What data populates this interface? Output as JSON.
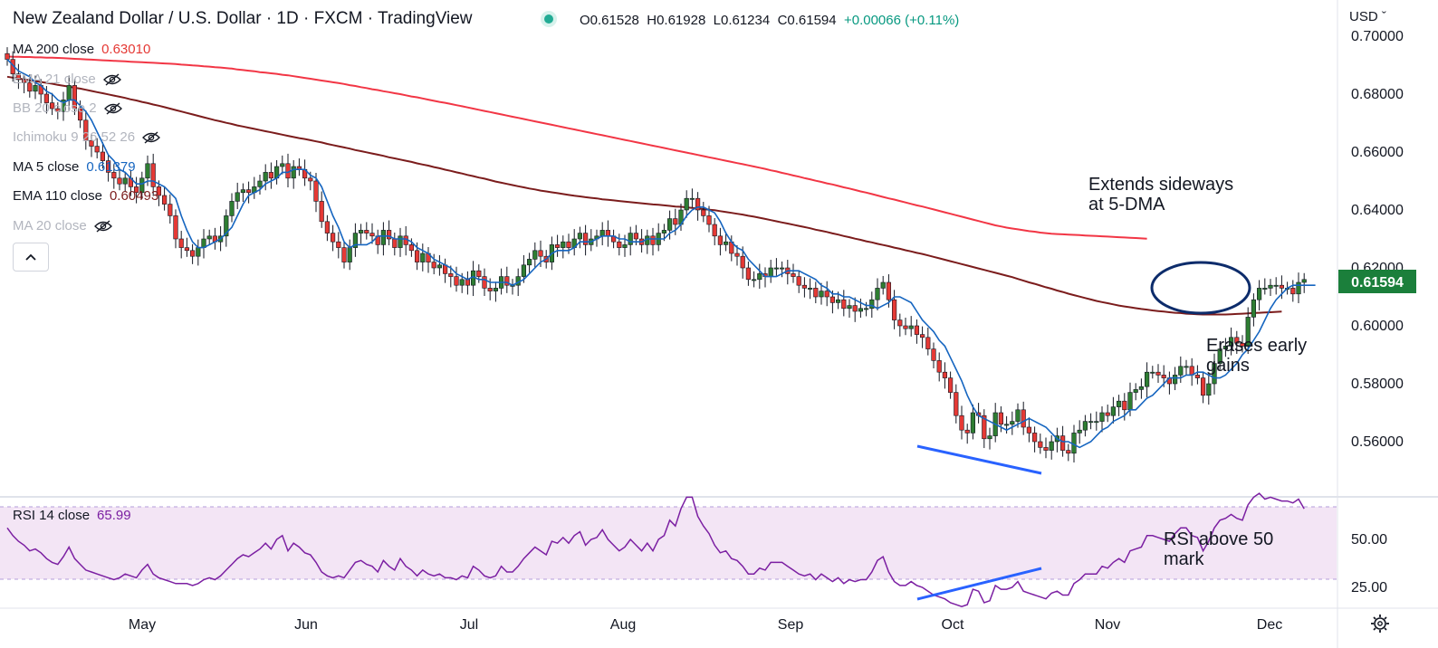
{
  "header": {
    "title": "New Zealand Dollar / U.S. Dollar · 1D · FXCM · TradingView",
    "open": "O0.61528",
    "high": "H0.61928",
    "low": "L0.61234",
    "close": "C0.61594",
    "change": "+0.00066 (+0.11%)"
  },
  "currency_selector": "USD",
  "indicators": [
    {
      "name": "MA 200 close",
      "value": "0.63010",
      "color": "#e53935",
      "visible": true
    },
    {
      "name": "EMA 21 close",
      "value": "",
      "color": "#b2b5be",
      "visible": false
    },
    {
      "name": "BB 20 close 2",
      "value": "",
      "color": "#b2b5be",
      "visible": false
    },
    {
      "name": "Ichimoku 9 26 52 26",
      "value": "",
      "color": "#b2b5be",
      "visible": false
    },
    {
      "name": "MA 5 close",
      "value": "0.61379",
      "color": "#1565c0",
      "visible": true
    },
    {
      "name": "EMA 110 close",
      "value": "0.60493",
      "color": "#7b1c1c",
      "visible": true
    },
    {
      "name": "MA 20 close",
      "value": "",
      "color": "#b2b5be",
      "visible": false
    }
  ],
  "rsi_legend": {
    "name": "RSI 14 close",
    "value": "65.99"
  },
  "price_badge": {
    "text": "0.61594",
    "color": "#1b7f3b"
  },
  "annotations": [
    {
      "id": "ann-sideways",
      "lines": [
        "Extends sideways",
        "at 5-DMA"
      ]
    },
    {
      "id": "ann-erases",
      "lines": [
        "Erases early",
        "gains"
      ]
    },
    {
      "id": "ann-rsi",
      "lines": [
        "RSI above 50",
        "mark"
      ]
    }
  ],
  "chart_data": {
    "type": "candlestick",
    "price_axis": {
      "ticks": [
        0.56,
        0.58,
        0.6,
        0.62,
        0.64,
        0.66,
        0.68,
        0.7
      ],
      "tick_labels": [
        "0.56000",
        "0.58000",
        "0.60000",
        "0.62000",
        "0.64000",
        "0.66000",
        "0.68000",
        "0.70000"
      ]
    },
    "rsi_axis": {
      "ticks": [
        25,
        50
      ],
      "tick_labels": [
        "25.00",
        "50.00"
      ],
      "band": [
        30,
        70
      ]
    },
    "x_axis": {
      "labels": [
        "May",
        "Jun",
        "Jul",
        "Aug",
        "Sep",
        "Oct",
        "Nov",
        "Dec"
      ]
    },
    "close": [
      0.692,
      0.687,
      0.685,
      0.684,
      0.681,
      0.683,
      0.68,
      0.677,
      0.675,
      0.674,
      0.678,
      0.683,
      0.675,
      0.671,
      0.664,
      0.662,
      0.66,
      0.657,
      0.653,
      0.651,
      0.649,
      0.651,
      0.648,
      0.646,
      0.651,
      0.656,
      0.648,
      0.645,
      0.642,
      0.638,
      0.63,
      0.627,
      0.626,
      0.624,
      0.627,
      0.63,
      0.631,
      0.629,
      0.631,
      0.638,
      0.643,
      0.646,
      0.647,
      0.646,
      0.648,
      0.65,
      0.653,
      0.651,
      0.655,
      0.656,
      0.651,
      0.655,
      0.654,
      0.651,
      0.65,
      0.643,
      0.636,
      0.632,
      0.629,
      0.627,
      0.622,
      0.627,
      0.632,
      0.633,
      0.632,
      0.631,
      0.628,
      0.633,
      0.63,
      0.627,
      0.631,
      0.628,
      0.626,
      0.622,
      0.625,
      0.622,
      0.62,
      0.621,
      0.618,
      0.617,
      0.614,
      0.616,
      0.614,
      0.619,
      0.617,
      0.613,
      0.612,
      0.613,
      0.617,
      0.614,
      0.614,
      0.617,
      0.621,
      0.623,
      0.626,
      0.624,
      0.622,
      0.628,
      0.627,
      0.629,
      0.627,
      0.63,
      0.632,
      0.628,
      0.63,
      0.631,
      0.633,
      0.631,
      0.629,
      0.627,
      0.628,
      0.632,
      0.63,
      0.628,
      0.631,
      0.628,
      0.632,
      0.633,
      0.637,
      0.635,
      0.64,
      0.644,
      0.644,
      0.64,
      0.638,
      0.635,
      0.631,
      0.628,
      0.629,
      0.625,
      0.624,
      0.62,
      0.616,
      0.616,
      0.618,
      0.617,
      0.62,
      0.62,
      0.62,
      0.618,
      0.617,
      0.614,
      0.613,
      0.613,
      0.61,
      0.612,
      0.61,
      0.608,
      0.609,
      0.606,
      0.607,
      0.605,
      0.606,
      0.606,
      0.609,
      0.613,
      0.615,
      0.609,
      0.602,
      0.6,
      0.599,
      0.6,
      0.597,
      0.596,
      0.592,
      0.588,
      0.584,
      0.582,
      0.577,
      0.569,
      0.564,
      0.563,
      0.57,
      0.569,
      0.561,
      0.562,
      0.57,
      0.566,
      0.566,
      0.567,
      0.571,
      0.565,
      0.563,
      0.56,
      0.558,
      0.557,
      0.56,
      0.562,
      0.557,
      0.556,
      0.563,
      0.564,
      0.567,
      0.567,
      0.567,
      0.57,
      0.569,
      0.572,
      0.574,
      0.571,
      0.577,
      0.578,
      0.579,
      0.584,
      0.584,
      0.583,
      0.582,
      0.58,
      0.583,
      0.586,
      0.586,
      0.583,
      0.582,
      0.576,
      0.58,
      0.587,
      0.592,
      0.593,
      0.596,
      0.594,
      0.593,
      0.603,
      0.609,
      0.613,
      0.613,
      0.614,
      0.614,
      0.613,
      0.613,
      0.611,
      0.615,
      0.616
    ],
    "ma5": [
      0.692,
      0.69,
      0.688,
      0.687,
      0.686,
      0.684,
      0.683,
      0.681,
      0.68,
      0.678,
      0.677,
      0.678,
      0.678,
      0.676,
      0.674,
      0.671,
      0.667,
      0.663,
      0.659,
      0.657,
      0.654,
      0.653,
      0.651,
      0.649,
      0.649,
      0.65,
      0.65,
      0.649,
      0.648,
      0.646,
      0.644,
      0.638,
      0.633,
      0.629,
      0.627,
      0.627,
      0.628,
      0.629,
      0.63,
      0.632,
      0.634,
      0.638,
      0.642,
      0.645,
      0.646,
      0.647,
      0.649,
      0.65,
      0.651,
      0.653,
      0.653,
      0.654,
      0.654,
      0.654,
      0.652,
      0.651,
      0.648,
      0.643,
      0.638,
      0.634,
      0.629,
      0.627,
      0.628,
      0.628,
      0.628,
      0.629,
      0.631,
      0.631,
      0.631,
      0.63,
      0.63,
      0.63,
      0.629,
      0.627,
      0.626,
      0.625,
      0.623,
      0.622,
      0.621,
      0.62,
      0.618,
      0.617,
      0.616,
      0.617,
      0.616,
      0.616,
      0.615,
      0.615,
      0.615,
      0.615,
      0.614,
      0.615,
      0.616,
      0.618,
      0.62,
      0.622,
      0.623,
      0.625,
      0.626,
      0.626,
      0.626,
      0.627,
      0.629,
      0.629,
      0.629,
      0.63,
      0.631,
      0.631,
      0.631,
      0.63,
      0.63,
      0.629,
      0.629,
      0.629,
      0.63,
      0.63,
      0.63,
      0.63,
      0.632,
      0.633,
      0.635,
      0.638,
      0.64,
      0.641,
      0.641,
      0.64,
      0.639,
      0.636,
      0.632,
      0.629,
      0.627,
      0.626,
      0.623,
      0.621,
      0.619,
      0.617,
      0.617,
      0.617,
      0.618,
      0.619,
      0.619,
      0.619,
      0.618,
      0.617,
      0.616,
      0.614,
      0.613,
      0.611,
      0.611,
      0.61,
      0.61,
      0.609,
      0.608,
      0.607,
      0.607,
      0.606,
      0.607,
      0.608,
      0.61,
      0.61,
      0.609,
      0.608,
      0.605,
      0.602,
      0.6,
      0.598,
      0.595,
      0.593,
      0.589,
      0.585,
      0.581,
      0.576,
      0.572,
      0.569,
      0.568,
      0.567,
      0.566,
      0.565,
      0.564,
      0.565,
      0.566,
      0.567,
      0.568,
      0.567,
      0.566,
      0.565,
      0.563,
      0.561,
      0.56,
      0.56,
      0.559,
      0.558,
      0.559,
      0.56,
      0.562,
      0.564,
      0.565,
      0.567,
      0.568,
      0.569,
      0.571,
      0.571,
      0.573,
      0.575,
      0.576,
      0.578,
      0.58,
      0.582,
      0.582,
      0.582,
      0.583,
      0.583,
      0.584,
      0.584,
      0.583,
      0.582,
      0.582,
      0.583,
      0.585,
      0.587,
      0.59,
      0.592,
      0.595,
      0.598,
      0.602,
      0.606,
      0.609,
      0.611,
      0.613,
      0.614,
      0.614,
      0.614,
      0.614,
      0.614
    ],
    "ema110": [
      0.686,
      0.6857,
      0.6854,
      0.6851,
      0.6848,
      0.6845,
      0.6842,
      0.6839,
      0.6836,
      0.6832,
      0.6829,
      0.6826,
      0.6822,
      0.6819,
      0.6815,
      0.6811,
      0.6807,
      0.6803,
      0.6799,
      0.6795,
      0.6791,
      0.6787,
      0.6782,
      0.6778,
      0.6773,
      0.6769,
      0.6764,
      0.676,
      0.6755,
      0.675,
      0.6745,
      0.674,
      0.6735,
      0.673,
      0.6725,
      0.672,
      0.6715,
      0.671,
      0.6706,
      0.6701,
      0.6697,
      0.6692,
      0.6688,
      0.6684,
      0.668,
      0.6676,
      0.6672,
      0.6668,
      0.6664,
      0.666,
      0.6656,
      0.6652,
      0.6648,
      0.6645,
      0.6641,
      0.6637,
      0.6633,
      0.6628,
      0.6624,
      0.662,
      0.6616,
      0.6612,
      0.6607,
      0.6603,
      0.6599,
      0.6595,
      0.6591,
      0.6587,
      0.6582,
      0.6578,
      0.6574,
      0.657,
      0.6566,
      0.6561,
      0.6557,
      0.6553,
      0.6548,
      0.6544,
      0.6539,
      0.6535,
      0.653,
      0.6526,
      0.6521,
      0.6517,
      0.6512,
      0.6508,
      0.6503,
      0.6498,
      0.6494,
      0.649,
      0.6486,
      0.6482,
      0.6478,
      0.6474,
      0.6471,
      0.6467,
      0.6464,
      0.6461,
      0.6458,
      0.6455,
      0.6452,
      0.6449,
      0.6447,
      0.6444,
      0.6442,
      0.644,
      0.6437,
      0.6435,
      0.6433,
      0.6431,
      0.6429,
      0.6427,
      0.6425,
      0.6423,
      0.6421,
      0.6419,
      0.6418,
      0.6416,
      0.6414,
      0.6412,
      0.6411,
      0.6409,
      0.6407,
      0.6405,
      0.6403,
      0.6401,
      0.6399,
      0.6396,
      0.6393,
      0.639,
      0.6387,
      0.6384,
      0.638,
      0.6377,
      0.6373,
      0.6369,
      0.6365,
      0.6361,
      0.6357,
      0.6353,
      0.6349,
      0.6345,
      0.6341,
      0.6337,
      0.6332,
      0.6328,
      0.6324,
      0.6319,
      0.6315,
      0.631,
      0.6306,
      0.6301,
      0.6297,
      0.6292,
      0.6288,
      0.6283,
      0.6279,
      0.6275,
      0.627,
      0.6266,
      0.6261,
      0.6257,
      0.6252,
      0.6248,
      0.6243,
      0.6238,
      0.6233,
      0.6228,
      0.6223,
      0.6218,
      0.6213,
      0.6208,
      0.6203,
      0.6198,
      0.6193,
      0.6188,
      0.6183,
      0.6178,
      0.6173,
      0.6168,
      0.6162,
      0.6156,
      0.615,
      0.6145,
      0.6139,
      0.6133,
      0.6128,
      0.6122,
      0.6117,
      0.6111,
      0.6106,
      0.6101,
      0.6096,
      0.6091,
      0.6086,
      0.6082,
      0.6078,
      0.6074,
      0.607,
      0.6067,
      0.6064,
      0.6061,
      0.6058,
      0.6056,
      0.6053,
      0.6051,
      0.6049,
      0.6047,
      0.6045,
      0.6044,
      0.6042,
      0.6041,
      0.604,
      0.6039,
      0.6039,
      0.6039,
      0.6039,
      0.6039,
      0.604,
      0.6041,
      0.6042,
      0.6043,
      0.6044,
      0.6045,
      0.6046,
      0.6047,
      0.6048,
      0.6049
    ],
    "ma200": [
      0.693,
      0.6929,
      0.6929,
      0.6928,
      0.6928,
      0.6927,
      0.6927,
      0.6926,
      0.6926,
      0.6925,
      0.6924,
      0.6923,
      0.6922,
      0.6921,
      0.692,
      0.6919,
      0.6918,
      0.6917,
      0.6916,
      0.6915,
      0.6914,
      0.6913,
      0.6912,
      0.6911,
      0.691,
      0.6909,
      0.6908,
      0.6907,
      0.6906,
      0.6905,
      0.6904,
      0.6902,
      0.6901,
      0.6899,
      0.6898,
      0.6896,
      0.6895,
      0.6893,
      0.6892,
      0.689,
      0.6888,
      0.6885,
      0.6883,
      0.6881,
      0.6879,
      0.6876,
      0.6874,
      0.6872,
      0.687,
      0.6867,
      0.6865,
      0.6862,
      0.6859,
      0.6856,
      0.6853,
      0.685,
      0.6847,
      0.6844,
      0.6841,
      0.6838,
      0.6835,
      0.6831,
      0.6828,
      0.6824,
      0.6821,
      0.6817,
      0.6814,
      0.681,
      0.6807,
      0.6803,
      0.68,
      0.6796,
      0.6792,
      0.6789,
      0.6785,
      0.6781,
      0.6777,
      0.6773,
      0.677,
      0.6766,
      0.6762,
      0.6758,
      0.6754,
      0.675,
      0.6746,
      0.6742,
      0.6738,
      0.6734,
      0.673,
      0.6726,
      0.6722,
      0.6718,
      0.6714,
      0.671,
      0.6706,
      0.6702,
      0.6698,
      0.6694,
      0.669,
      0.6686,
      0.6682,
      0.6678,
      0.6674,
      0.667,
      0.6666,
      0.6662,
      0.6658,
      0.6654,
      0.665,
      0.6646,
      0.6642,
      0.6638,
      0.6634,
      0.663,
      0.6626,
      0.6622,
      0.6618,
      0.6614,
      0.661,
      0.6606,
      0.6602,
      0.6598,
      0.6594,
      0.659,
      0.6586,
      0.6582,
      0.6578,
      0.6574,
      0.657,
      0.6566,
      0.6562,
      0.6558,
      0.6554,
      0.655,
      0.6546,
      0.6542,
      0.6537,
      0.6533,
      0.6528,
      0.6524,
      0.6519,
      0.6515,
      0.651,
      0.6506,
      0.6501,
      0.6497,
      0.6492,
      0.6488,
      0.6483,
      0.6478,
      0.6474,
      0.6469,
      0.6464,
      0.646,
      0.6455,
      0.645,
      0.6445,
      0.644,
      0.6436,
      0.6431,
      0.6426,
      0.6421,
      0.6416,
      0.6412,
      0.6407,
      0.6402,
      0.6397,
      0.6392,
      0.6387,
      0.6382,
      0.6377,
      0.6372,
      0.6367,
      0.6362,
      0.6357,
      0.6352,
      0.6347,
      0.6343,
      0.6339,
      0.6336,
      0.6333,
      0.633,
      0.6327,
      0.6325,
      0.6322,
      0.632,
      0.6318,
      0.6317,
      0.6316,
      0.6315,
      0.6314,
      0.6313,
      0.6312,
      0.6311,
      0.631,
      0.6309,
      0.6308,
      0.6307,
      0.6306,
      0.6305,
      0.6304,
      0.6303,
      0.6302,
      0.6301
    ],
    "rsi": [
      56,
      52,
      49,
      47,
      44,
      45,
      43,
      40,
      38,
      37,
      41,
      46,
      40,
      37,
      34,
      33,
      32,
      31,
      30,
      29,
      30,
      32,
      31,
      30,
      34,
      37,
      32,
      30,
      29,
      28,
      27,
      27,
      27,
      26,
      27,
      29,
      30,
      29,
      31,
      34,
      37,
      40,
      42,
      41,
      43,
      45,
      48,
      45,
      50,
      52,
      44,
      48,
      46,
      43,
      42,
      38,
      33,
      31,
      30,
      31,
      30,
      34,
      38,
      39,
      37,
      36,
      33,
      39,
      36,
      34,
      40,
      36,
      34,
      31,
      34,
      32,
      31,
      32,
      30,
      30,
      29,
      31,
      30,
      36,
      34,
      31,
      30,
      31,
      36,
      33,
      33,
      36,
      40,
      43,
      46,
      44,
      42,
      49,
      48,
      51,
      48,
      52,
      54,
      47,
      50,
      51,
      55,
      50,
      47,
      44,
      46,
      50,
      47,
      44,
      48,
      44,
      50,
      52,
      60,
      57,
      66,
      72,
      72,
      62,
      57,
      53,
      47,
      43,
      44,
      40,
      39,
      36,
      32,
      32,
      35,
      34,
      38,
      38,
      38,
      36,
      34,
      32,
      31,
      32,
      29,
      32,
      30,
      28,
      30,
      27,
      29,
      28,
      29,
      29,
      33,
      39,
      41,
      33,
      28,
      26,
      26,
      28,
      26,
      25,
      23,
      21,
      20,
      19,
      17,
      16,
      15,
      16,
      24,
      23,
      17,
      18,
      26,
      24,
      24,
      25,
      28,
      23,
      22,
      21,
      20,
      19,
      22,
      23,
      21,
      21,
      27,
      29,
      32,
      32,
      32,
      36,
      35,
      38,
      40,
      38,
      44,
      45,
      46,
      52,
      52,
      51,
      50,
      49,
      53,
      56,
      56,
      52,
      51,
      44,
      49,
      56,
      60,
      61,
      63,
      61,
      60,
      68,
      72,
      74,
      71,
      72,
      71,
      70,
      70,
      69,
      71,
      66
    ]
  }
}
